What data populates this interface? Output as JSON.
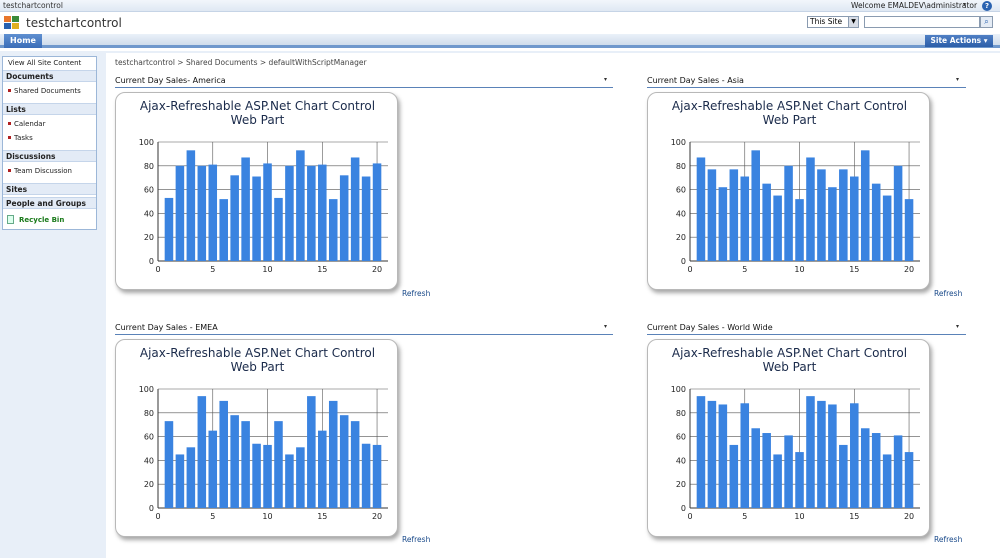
{
  "topbar": {
    "site_crumb": "testchartcontrol",
    "welcome": "Welcome EMALDEV\\administrator",
    "welcome_arrow": "▾",
    "help": "?"
  },
  "header": {
    "site_title": "testchartcontrol",
    "search_scope": "This Site",
    "search_placeholder": "",
    "search_button_glyph": "⌕"
  },
  "nav": {
    "home_tab": "Home",
    "site_actions": "Site Actions ▾"
  },
  "leftnav": {
    "view_all": "View All Site Content",
    "sections": [
      {
        "label": "Documents",
        "items": [
          "Shared Documents"
        ]
      },
      {
        "label": "Lists",
        "items": [
          "Calendar",
          "Tasks"
        ]
      },
      {
        "label": "Discussions",
        "items": [
          "Team Discussion"
        ]
      },
      {
        "label": "Sites",
        "items": []
      },
      {
        "label": "People and Groups",
        "items": []
      }
    ],
    "recycle_bin": "Recycle Bin"
  },
  "breadcrumb": "testchartcontrol > Shared Documents > defaultWithScriptManager",
  "webparts": [
    {
      "title": "Current Day Sales- America",
      "refresh": "Refresh"
    },
    {
      "title": "Current Day Sales - Asia",
      "refresh": "Refresh"
    },
    {
      "title": "Current Day Sales - EMEA",
      "refresh": "Refresh"
    },
    {
      "title": "Current Day Sales - World Wide",
      "refresh": "Refresh"
    }
  ],
  "wp_menu_glyph": "▾",
  "chart_title_line1": "Ajax-Refreshable ASP.Net Chart Control",
  "chart_title_line2": "Web Part",
  "colors": {
    "bar": "#3a83e0",
    "nav_accent": "#6f98cc"
  },
  "chart_data": [
    {
      "type": "bar",
      "title": "Ajax-Refreshable ASP.Net Chart Control Web Part",
      "x": [
        1,
        2,
        3,
        4,
        5,
        6,
        7,
        8,
        9,
        10,
        11,
        12,
        13,
        14,
        15,
        16,
        17,
        18,
        19,
        20
      ],
      "values": [
        53,
        80,
        93,
        80,
        81,
        52,
        72,
        87,
        71,
        82,
        53,
        80,
        93,
        80,
        81,
        52,
        72,
        87,
        71,
        82
      ],
      "xticks": [
        0,
        5,
        10,
        15,
        20
      ],
      "yticks": [
        0,
        20,
        40,
        60,
        80,
        100
      ],
      "xlim": [
        0,
        21
      ],
      "ylim": [
        0,
        100
      ],
      "grid": true
    },
    {
      "type": "bar",
      "title": "Ajax-Refreshable ASP.Net Chart Control Web Part",
      "x": [
        1,
        2,
        3,
        4,
        5,
        6,
        7,
        8,
        9,
        10,
        11,
        12,
        13,
        14,
        15,
        16,
        17,
        18,
        19,
        20
      ],
      "values": [
        87,
        77,
        62,
        77,
        71,
        93,
        65,
        55,
        80,
        52,
        87,
        77,
        62,
        77,
        71,
        93,
        65,
        55,
        80,
        52
      ],
      "xticks": [
        0,
        5,
        10,
        15,
        20
      ],
      "yticks": [
        0,
        20,
        40,
        60,
        80,
        100
      ],
      "xlim": [
        0,
        21
      ],
      "ylim": [
        0,
        100
      ],
      "grid": true
    },
    {
      "type": "bar",
      "title": "Ajax-Refreshable ASP.Net Chart Control Web Part",
      "x": [
        1,
        2,
        3,
        4,
        5,
        6,
        7,
        8,
        9,
        10,
        11,
        12,
        13,
        14,
        15,
        16,
        17,
        18,
        19,
        20
      ],
      "values": [
        73,
        45,
        51,
        94,
        65,
        90,
        78,
        73,
        54,
        53,
        73,
        45,
        51,
        94,
        65,
        90,
        78,
        73,
        54,
        53
      ],
      "xticks": [
        0,
        5,
        10,
        15,
        20
      ],
      "yticks": [
        0,
        20,
        40,
        60,
        80,
        100
      ],
      "xlim": [
        0,
        21
      ],
      "ylim": [
        0,
        100
      ],
      "grid": true
    },
    {
      "type": "bar",
      "title": "Ajax-Refreshable ASP.Net Chart Control Web Part",
      "x": [
        1,
        2,
        3,
        4,
        5,
        6,
        7,
        8,
        9,
        10,
        11,
        12,
        13,
        14,
        15,
        16,
        17,
        18,
        19,
        20
      ],
      "values": [
        94,
        90,
        87,
        53,
        88,
        67,
        63,
        45,
        61,
        47,
        94,
        90,
        87,
        53,
        88,
        67,
        63,
        45,
        61,
        47
      ],
      "xticks": [
        0,
        5,
        10,
        15,
        20
      ],
      "yticks": [
        0,
        20,
        40,
        60,
        80,
        100
      ],
      "xlim": [
        0,
        21
      ],
      "ylim": [
        0,
        100
      ],
      "grid": true
    }
  ]
}
